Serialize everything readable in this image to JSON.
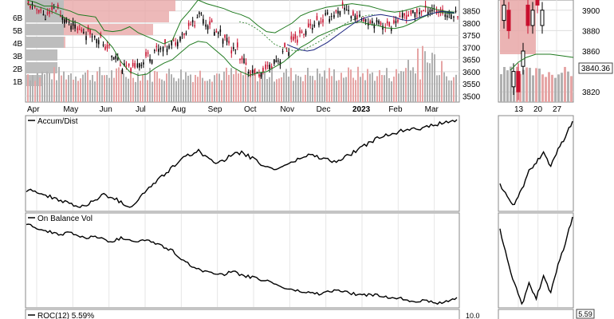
{
  "chart_data": {
    "type": "line",
    "price_panel": {
      "y_ticks": [
        3850,
        3800,
        3750,
        3700,
        3650,
        3600,
        3550,
        3500
      ],
      "ylim": [
        3475,
        3895
      ],
      "volume_profile_labels": [
        "6B",
        "5B",
        "4B",
        "3B",
        "2B",
        "1B"
      ],
      "x_labels": [
        "Apr",
        "May",
        "Jun",
        "Jul",
        "Aug",
        "Sep",
        "Oct",
        "Nov",
        "Dec",
        "2023",
        "Feb",
        "Mar"
      ],
      "zoom_y_ticks": [
        3900,
        3880,
        3860,
        3820
      ],
      "zoom_ylim": [
        3810,
        3910
      ],
      "zoom_x_labels": [
        "13",
        "20",
        "27"
      ],
      "last_price_label": "3840.36",
      "upper_band": [
        3895,
        3885,
        3870,
        3870,
        3860,
        3850,
        3835,
        3830,
        3825,
        3770,
        3765,
        3770,
        3785,
        3760,
        3745,
        3730,
        3715,
        3730,
        3810,
        3850,
        3895,
        3880,
        3870,
        3860,
        3845,
        3835,
        3820,
        3790,
        3765,
        3760,
        3780,
        3800,
        3830,
        3845,
        3855,
        3865,
        3870,
        3875,
        3880,
        3875,
        3870,
        3860,
        3850,
        3845,
        3850,
        3860,
        3870,
        3865,
        3855,
        3848,
        3845
      ],
      "lower_band": [
        3880,
        3870,
        3860,
        3845,
        3830,
        3810,
        3800,
        3780,
        3770,
        3740,
        3700,
        3640,
        3600,
        3585,
        3590,
        3615,
        3635,
        3650,
        3680,
        3710,
        3725,
        3720,
        3690,
        3660,
        3620,
        3600,
        3585,
        3595,
        3600,
        3620,
        3640,
        3670,
        3700,
        3720,
        3745,
        3760,
        3775,
        3790,
        3800,
        3805,
        3795,
        3790,
        3780,
        3778,
        3785,
        3800,
        3820,
        3835,
        3845,
        3842,
        3840
      ],
      "moving_average": [
        3888,
        3880,
        3870,
        3860,
        3848,
        3835,
        3820,
        3810,
        3800,
        3770,
        3740,
        3720,
        3705,
        3690,
        3690,
        3705,
        3720,
        3735,
        3755,
        3780,
        3805,
        3800,
        3785,
        3765,
        3738,
        3712,
        3700,
        3690,
        3685,
        3690,
        3705,
        3720,
        3740,
        3760,
        3780,
        3800,
        3815,
        3825,
        3832,
        3835,
        3830,
        3825,
        3815,
        3810,
        3815,
        3825,
        3835,
        3842,
        3848,
        3845,
        3842
      ],
      "close": [
        3870,
        3855,
        3830,
        3860,
        3820,
        3790,
        3770,
        3760,
        3740,
        3700,
        3660,
        3620,
        3610,
        3640,
        3665,
        3690,
        3700,
        3720,
        3760,
        3800,
        3830,
        3800,
        3760,
        3730,
        3690,
        3640,
        3600,
        3590,
        3620,
        3650,
        3690,
        3730,
        3760,
        3790,
        3810,
        3830,
        3840,
        3860,
        3830,
        3820,
        3810,
        3800,
        3790,
        3810,
        3830,
        3840,
        3850,
        3860,
        3845,
        3835,
        3840
      ]
    },
    "accum_dist": {
      "label": "Accum/Dist",
      "values": [
        0.42,
        0.44,
        0.4,
        0.38,
        0.36,
        0.33,
        0.3,
        0.32,
        0.36,
        0.4,
        0.38,
        0.34,
        0.3,
        0.36,
        0.44,
        0.5,
        0.56,
        0.62,
        0.68,
        0.72,
        0.75,
        0.7,
        0.66,
        0.68,
        0.72,
        0.74,
        0.7,
        0.66,
        0.62,
        0.6,
        0.64,
        0.66,
        0.7,
        0.72,
        0.7,
        0.68,
        0.66,
        0.7,
        0.74,
        0.78,
        0.82,
        0.86,
        0.88,
        0.9,
        0.92,
        0.94,
        0.93,
        0.95,
        0.97,
        0.98,
        1.0
      ],
      "zoom_values": [
        0.45,
        0.38,
        0.3,
        0.42,
        0.55,
        0.62,
        0.68,
        0.6,
        0.72,
        0.8,
        0.92
      ]
    },
    "obv": {
      "label": "On Balance Vol",
      "values": [
        0.98,
        0.96,
        0.92,
        0.9,
        0.88,
        0.9,
        0.86,
        0.84,
        0.86,
        0.82,
        0.8,
        0.84,
        0.82,
        0.8,
        0.82,
        0.78,
        0.74,
        0.7,
        0.6,
        0.55,
        0.5,
        0.48,
        0.46,
        0.45,
        0.48,
        0.44,
        0.42,
        0.4,
        0.38,
        0.34,
        0.3,
        0.28,
        0.26,
        0.25,
        0.24,
        0.26,
        0.28,
        0.26,
        0.24,
        0.22,
        0.23,
        0.22,
        0.2,
        0.2,
        0.18,
        0.16,
        0.17,
        0.15,
        0.14,
        0.16,
        0.2
      ],
      "zoom_values": [
        0.7,
        0.5,
        0.3,
        0.15,
        0.3,
        0.2,
        0.35,
        0.25,
        0.45,
        0.6,
        0.8
      ]
    },
    "roc": {
      "label": "ROC(12) 5.59%",
      "y_tick": "10.0",
      "zoom_value_label": "5.59"
    }
  }
}
